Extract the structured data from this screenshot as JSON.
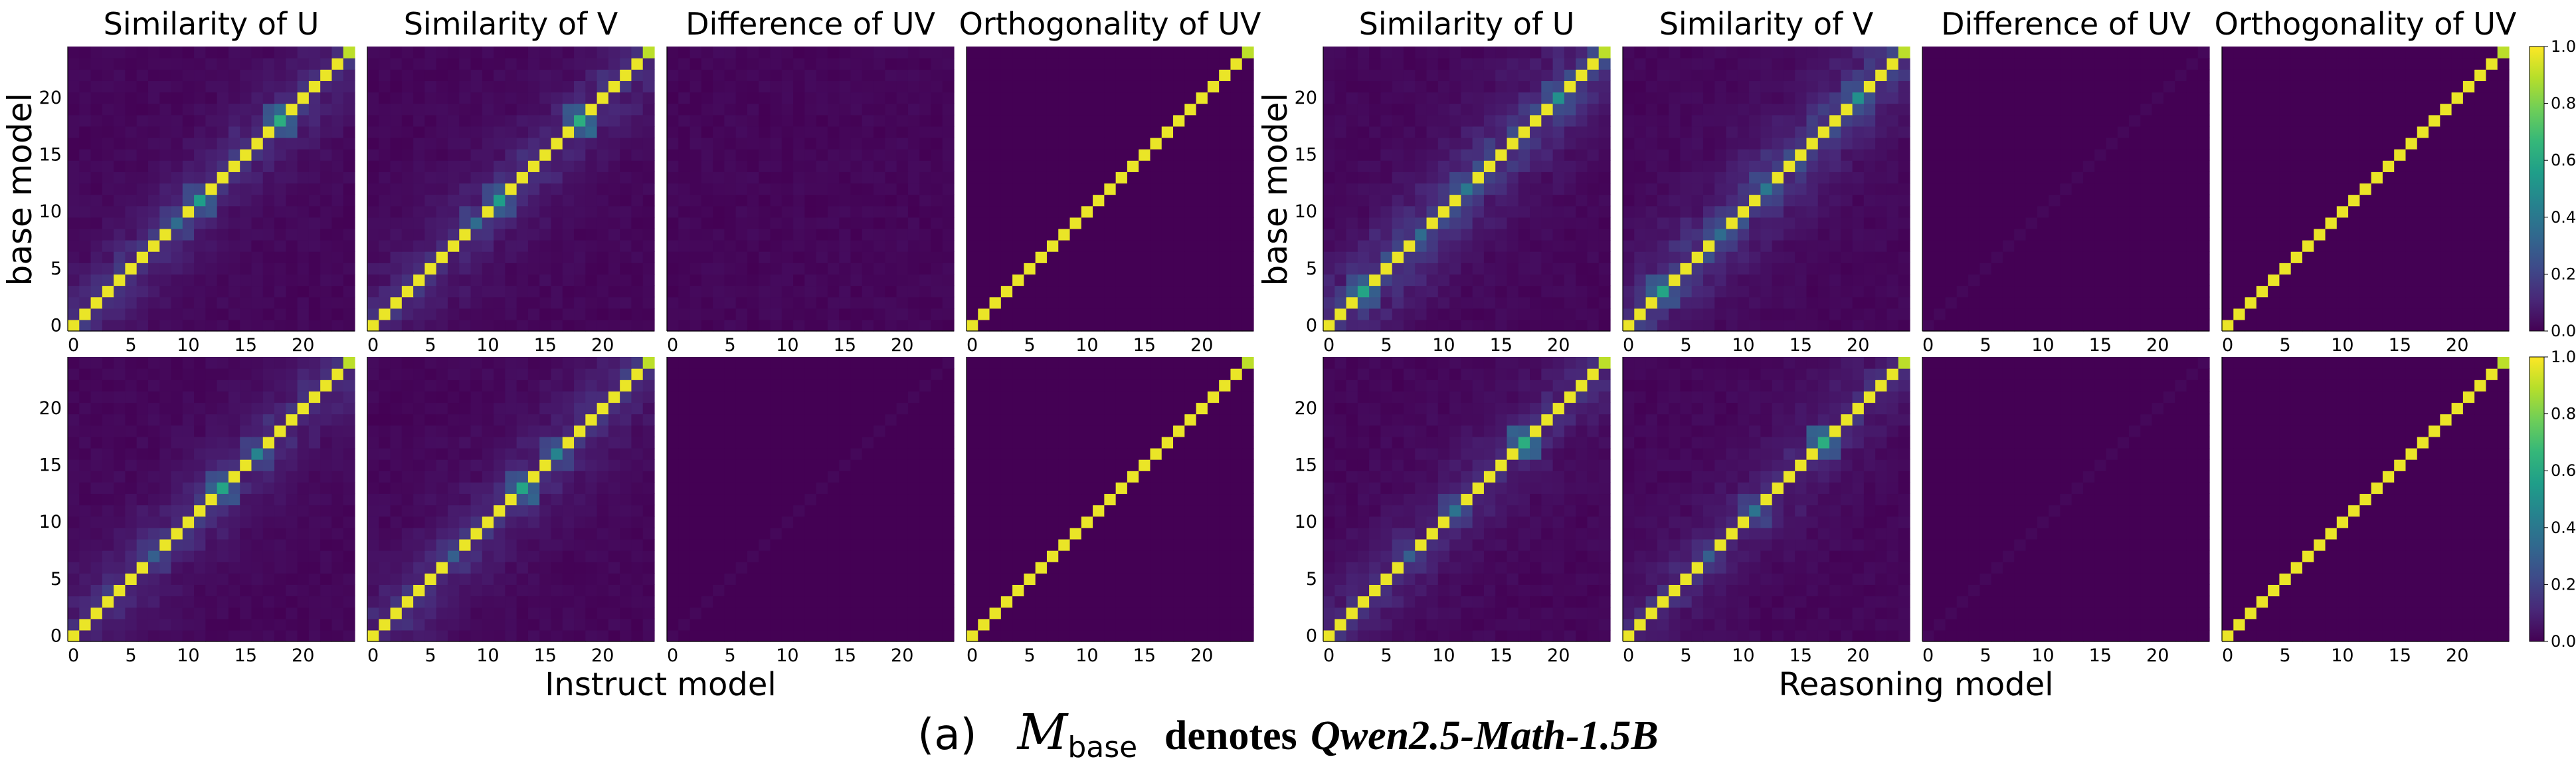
{
  "chart_data": {
    "type": "heatmap",
    "size": 25,
    "x_ticks": [
      0,
      5,
      10,
      15,
      20
    ],
    "y_ticks": [
      0,
      5,
      10,
      15,
      20
    ],
    "colorscale": "viridis",
    "colorbar_range": [
      0.0,
      1.0
    ],
    "colorbar_ticks": [
      "0.0",
      "0.2",
      "0.4",
      "0.6",
      "0.8",
      "1.0"
    ],
    "panel_titles": [
      "Similarity of U",
      "Similarity of V",
      "Difference of UV",
      "Orthogonality of UV"
    ],
    "ylabel": "base model",
    "groups": [
      {
        "xlabel": "Instruct model",
        "rows": [
          {
            "panels": [
              {
                "kind": "similarity",
                "noise": 0.14,
                "seed": 11,
                "highlights": [
                  {
                    "index": 11,
                    "value": 0.55
                  },
                  {
                    "index": 18,
                    "value": 0.62
                  },
                  {
                    "index": 9,
                    "value": 0.35
                  }
                ]
              },
              {
                "kind": "similarity",
                "noise": 0.14,
                "seed": 12,
                "highlights": [
                  {
                    "index": 11,
                    "value": 0.55
                  },
                  {
                    "index": 18,
                    "value": 0.62
                  },
                  {
                    "index": 9,
                    "value": 0.35
                  }
                ]
              },
              {
                "kind": "difference",
                "noise": 0.03,
                "seed": 13,
                "highlights": []
              },
              {
                "kind": "orthogonality",
                "noise": 0.0,
                "seed": 14,
                "highlights": []
              }
            ]
          },
          {
            "panels": [
              {
                "kind": "similarity",
                "noise": 0.14,
                "seed": 21,
                "highlights": [
                  {
                    "index": 13,
                    "value": 0.58
                  },
                  {
                    "index": 16,
                    "value": 0.45
                  },
                  {
                    "index": 7,
                    "value": 0.3
                  }
                ]
              },
              {
                "kind": "similarity",
                "noise": 0.14,
                "seed": 22,
                "highlights": [
                  {
                    "index": 13,
                    "value": 0.58
                  },
                  {
                    "index": 16,
                    "value": 0.45
                  },
                  {
                    "index": 7,
                    "value": 0.3
                  }
                ]
              },
              {
                "kind": "difference",
                "noise": 0.0,
                "seed": 23,
                "highlights": []
              },
              {
                "kind": "orthogonality",
                "noise": 0.0,
                "seed": 24,
                "highlights": []
              }
            ]
          }
        ]
      },
      {
        "xlabel": "Reasoning model",
        "rows": [
          {
            "panels": [
              {
                "kind": "similarity",
                "noise": 0.2,
                "seed": 31,
                "highlights": [
                  {
                    "index": 3,
                    "value": 0.58
                  },
                  {
                    "index": 20,
                    "value": 0.5
                  },
                  {
                    "index": 12,
                    "value": 0.4
                  },
                  {
                    "index": 8,
                    "value": 0.35
                  }
                ]
              },
              {
                "kind": "similarity",
                "noise": 0.2,
                "seed": 32,
                "highlights": [
                  {
                    "index": 3,
                    "value": 0.58
                  },
                  {
                    "index": 20,
                    "value": 0.5
                  },
                  {
                    "index": 12,
                    "value": 0.4
                  },
                  {
                    "index": 8,
                    "value": 0.35
                  }
                ]
              },
              {
                "kind": "difference",
                "noise": 0.0,
                "seed": 33,
                "highlights": []
              },
              {
                "kind": "orthogonality",
                "noise": 0.0,
                "seed": 34,
                "highlights": []
              }
            ]
          },
          {
            "panels": [
              {
                "kind": "similarity",
                "noise": 0.12,
                "seed": 41,
                "highlights": [
                  {
                    "index": 17,
                    "value": 0.62
                  },
                  {
                    "index": 11,
                    "value": 0.38
                  },
                  {
                    "index": 7,
                    "value": 0.3
                  }
                ]
              },
              {
                "kind": "similarity",
                "noise": 0.12,
                "seed": 42,
                "highlights": [
                  {
                    "index": 17,
                    "value": 0.62
                  },
                  {
                    "index": 11,
                    "value": 0.38
                  },
                  {
                    "index": 7,
                    "value": 0.3
                  }
                ]
              },
              {
                "kind": "difference",
                "noise": 0.0,
                "seed": 43,
                "highlights": []
              },
              {
                "kind": "orthogonality",
                "noise": 0.0,
                "seed": 44,
                "highlights": []
              }
            ]
          }
        ]
      }
    ]
  },
  "caption": {
    "label": "(a)",
    "math_symbol": "M",
    "math_subscript": "base",
    "text": "denotes",
    "model": "Qwen2.5-Math-1.5B"
  }
}
